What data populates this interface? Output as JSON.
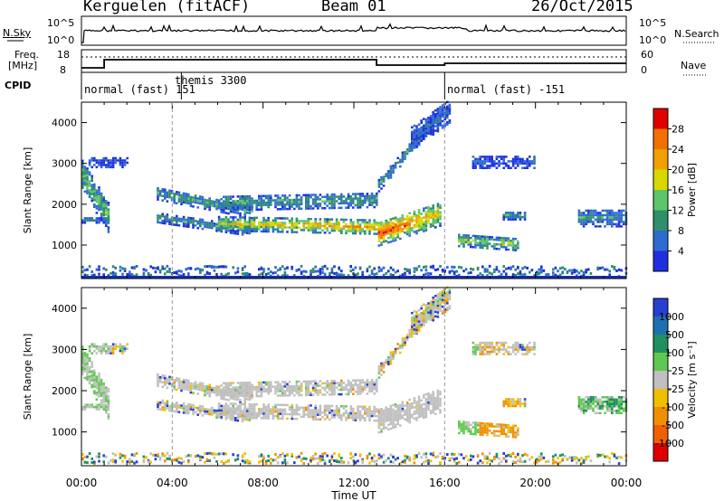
{
  "header": {
    "station": "Kerguelen (fitACF)",
    "beam": "Beam 01",
    "date": "26/Oct/2015"
  },
  "panels": {
    "nsky_label": "N.Sky",
    "nsky_ticks": [
      "10^5",
      "10^0"
    ],
    "nsearch_label": "N.Search",
    "nsearch_ticks": [
      "10^5",
      "10^0"
    ],
    "freq_label": "Freq.",
    "freq_unit": "[MHz]",
    "freq_ticks": [
      "18",
      "8"
    ],
    "nave_label": "Nave",
    "nave_ticks": [
      "60",
      "0"
    ],
    "cpid_label": "CPID"
  },
  "cpid_segments": [
    {
      "start_hour": 0,
      "label": "normal (fast) 151"
    },
    {
      "start_hour": 4.4,
      "label": "themis 3300"
    },
    {
      "start_hour": 16,
      "label": "normal (fast) -151"
    }
  ],
  "colors": {
    "power": [
      "#1f2fe0",
      "#2e6bd0",
      "#2f8f6a",
      "#5fc46a",
      "#d8d800",
      "#f0a000",
      "#f07000",
      "#e00000"
    ],
    "velocity": [
      "#2840d0",
      "#2070b0",
      "#209060",
      "#60c850",
      "#c0c0c0",
      "#f0c000",
      "#f09000",
      "#f06000",
      "#e00000"
    ],
    "ground_band": "#1830b0"
  },
  "chart_data": [
    {
      "type": "heatmap",
      "name": "power-panel",
      "ylabel": "Slant Range [km]",
      "y_ticks": [
        1000,
        2000,
        3000,
        4000
      ],
      "ylim": [
        180,
        4500
      ],
      "xlim": [
        0,
        24
      ],
      "colorbar": {
        "label": "Power [dB]",
        "ticks": [
          "4",
          "8",
          "12",
          "16",
          "20",
          "24",
          "28"
        ]
      },
      "echo_regions": [
        {
          "hours": [
            0.0,
            1.2
          ],
          "range_km": [
            1500,
            3100
          ],
          "level": "medium"
        },
        {
          "hours": [
            3.5,
            7.0
          ],
          "range_km": [
            1600,
            2400
          ],
          "level": "medium"
        },
        {
          "hours": [
            6.0,
            13.0
          ],
          "range_km": [
            1200,
            2100
          ],
          "level": "high"
        },
        {
          "hours": [
            13.0,
            15.8
          ],
          "range_km": [
            900,
            2400
          ],
          "level": "very high"
        },
        {
          "hours": [
            14.0,
            16.0
          ],
          "range_km": [
            2500,
            4400
          ],
          "level": "low"
        },
        {
          "hours": [
            16.5,
            19.0
          ],
          "range_km": [
            700,
            1400
          ],
          "level": "medium"
        },
        {
          "hours": [
            22.0,
            24.0
          ],
          "range_km": [
            1300,
            2000
          ],
          "level": "low"
        }
      ]
    },
    {
      "type": "heatmap",
      "name": "velocity-panel",
      "ylabel": "Slant Range [km]",
      "xlabel": "Time UT",
      "x_ticks": [
        "00:00",
        "04:00",
        "08:00",
        "12:00",
        "16:00",
        "20:00",
        "00:00"
      ],
      "y_ticks": [
        1000,
        2000,
        3000,
        4000
      ],
      "ylim": [
        180,
        4500
      ],
      "xlim": [
        0,
        24
      ],
      "colorbar": {
        "label": "Velocity [m s⁻¹]",
        "ticks": [
          "1000",
          "500",
          "100",
          "25",
          "-25",
          "-100",
          "-500",
          "-1000"
        ]
      },
      "echo_regions": [
        {
          "hours": [
            0.0,
            1.2
          ],
          "range_km": [
            1500,
            3100
          ],
          "velocity": "ground scatter / +100"
        },
        {
          "hours": [
            3.5,
            13.0
          ],
          "range_km": [
            1300,
            2400
          ],
          "velocity": "ground scatter"
        },
        {
          "hours": [
            13.0,
            15.8
          ],
          "range_km": [
            900,
            2400
          ],
          "velocity": "ground scatter"
        },
        {
          "hours": [
            16.5,
            17.5
          ],
          "range_km": [
            700,
            1400
          ],
          "velocity": "+100"
        },
        {
          "hours": [
            17.5,
            19.0
          ],
          "range_km": [
            800,
            1100
          ],
          "velocity": "-100"
        },
        {
          "hours": [
            22.0,
            24.0
          ],
          "range_km": [
            1300,
            2000
          ],
          "velocity": "+100"
        }
      ]
    }
  ]
}
